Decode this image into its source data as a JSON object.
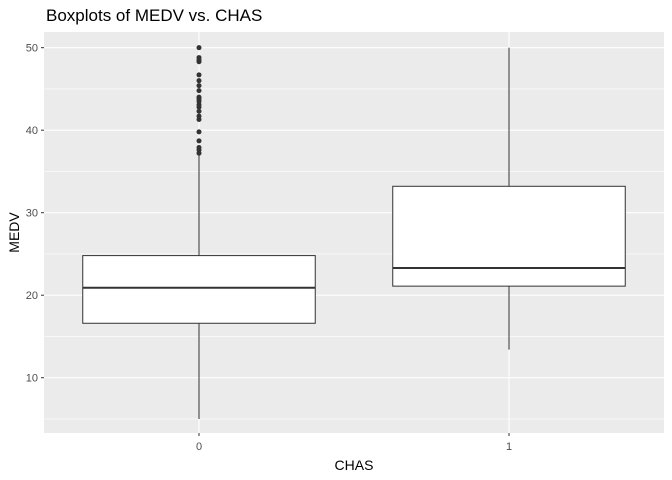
{
  "chart_data": {
    "type": "boxplot",
    "title": "Boxplots of MEDV vs. CHAS",
    "xlabel": "CHAS",
    "ylabel": "MEDV",
    "categories": [
      "0",
      "1"
    ],
    "ylim": [
      3.3,
      51.9
    ],
    "yticks": [
      10,
      20,
      30,
      40,
      50
    ],
    "grid": true,
    "boxes": [
      {
        "category": "0",
        "min": 5.0,
        "q1": 16.6,
        "median": 20.9,
        "q3": 24.8,
        "max": 37.0,
        "outliers": [
          37.2,
          37.6,
          37.9,
          38.7,
          39.8,
          41.3,
          41.7,
          42.3,
          42.8,
          43.1,
          43.5,
          43.8,
          44.0,
          44.8,
          45.4,
          46.0,
          46.7,
          48.3,
          48.5,
          48.8,
          50.0
        ]
      },
      {
        "category": "1",
        "min": 13.4,
        "q1": 21.1,
        "median": 23.3,
        "q3": 33.2,
        "max": 50.0,
        "outliers": []
      }
    ]
  }
}
